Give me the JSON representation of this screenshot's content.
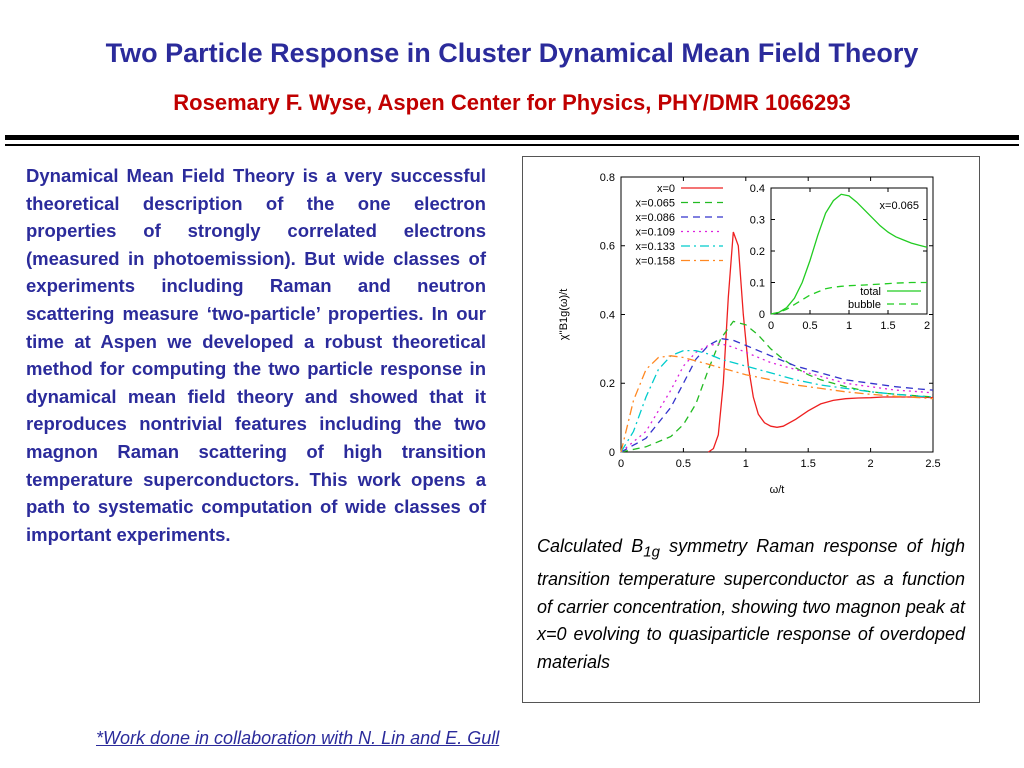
{
  "header": {
    "title": "Two Particle Response in Cluster Dynamical Mean Field Theory",
    "subtitle": "Rosemary F. Wyse, Aspen Center for Physics, PHY/DMR 1066293"
  },
  "body_text": "Dynamical Mean Field Theory is  a very successful theoretical description of the one electron properties of  strongly correlated electrons (measured in photoemission). But wide classes of experiments including Raman and neutron scattering measure ‘two-particle’ properties. In our time at Aspen we developed a robust theoretical method for computing the two particle response in dynamical mean field theory and showed that it reproduces nontrivial features including the two magnon Raman scattering of high transition temperature superconductors. This work opens a path to systematic computation of wide classes of important experiments.",
  "caption": {
    "pre": "Calculated B",
    "sub": "1g",
    "post": " symmetry Raman response of high transition temperature superconductor as a function of carrier concentration, showing two magnon peak at x=0 evolving to quasiparticle response of overdoped materials"
  },
  "footnote": "*Work done in collaboration with N. Lin and E. Gull",
  "chart_data": [
    {
      "type": "line",
      "xlabel": "ω/t",
      "ylabel": "χ''B1g(ω)/t",
      "xlim": [
        0,
        2.5
      ],
      "ylim": [
        0,
        0.8
      ],
      "xticks": [
        "0",
        "0.5",
        "1",
        "1.5",
        "2",
        "2.5"
      ],
      "yticks": [
        "0",
        "0.2",
        "0.4",
        "0.6",
        "0.8"
      ],
      "legend_position": "top-left",
      "series": [
        {
          "name": "x=0",
          "color": "#ee2020",
          "dash": "solid",
          "x": [
            0.7,
            0.74,
            0.78,
            0.82,
            0.86,
            0.9,
            0.94,
            0.98,
            1.02,
            1.06,
            1.1,
            1.15,
            1.2,
            1.25,
            1.3,
            1.4,
            1.5,
            1.6,
            1.7,
            1.8,
            1.9,
            2.0,
            2.1,
            2.2,
            2.3,
            2.4,
            2.5
          ],
          "y": [
            0.0,
            0.01,
            0.05,
            0.2,
            0.45,
            0.64,
            0.6,
            0.4,
            0.25,
            0.16,
            0.11,
            0.085,
            0.075,
            0.072,
            0.075,
            0.095,
            0.12,
            0.14,
            0.15,
            0.155,
            0.157,
            0.158,
            0.16,
            0.16,
            0.16,
            0.16,
            0.158
          ]
        },
        {
          "name": "x=0.065",
          "color": "#22bb22",
          "dash": "7,5",
          "x": [
            0.0,
            0.2,
            0.4,
            0.5,
            0.6,
            0.7,
            0.8,
            0.9,
            1.0,
            1.1,
            1.2,
            1.3,
            1.4,
            1.5,
            1.6,
            1.7,
            1.8,
            1.9,
            2.0,
            2.2,
            2.4,
            2.5
          ],
          "y": [
            0.0,
            0.015,
            0.045,
            0.08,
            0.14,
            0.24,
            0.33,
            0.38,
            0.37,
            0.34,
            0.3,
            0.27,
            0.245,
            0.225,
            0.21,
            0.2,
            0.19,
            0.182,
            0.175,
            0.168,
            0.163,
            0.16
          ]
        },
        {
          "name": "x=0.086",
          "color": "#3333cc",
          "dash": "7,5",
          "x": [
            0.0,
            0.2,
            0.4,
            0.5,
            0.6,
            0.7,
            0.8,
            0.9,
            1.0,
            1.2,
            1.4,
            1.6,
            1.8,
            2.0,
            2.2,
            2.4,
            2.5
          ],
          "y": [
            0.0,
            0.04,
            0.13,
            0.2,
            0.27,
            0.31,
            0.33,
            0.325,
            0.31,
            0.28,
            0.25,
            0.23,
            0.21,
            0.2,
            0.19,
            0.183,
            0.18
          ]
        },
        {
          "name": "x=0.109",
          "color": "#dd22dd",
          "dash": "2,4",
          "x": [
            0.0,
            0.2,
            0.4,
            0.5,
            0.6,
            0.7,
            0.8,
            0.9,
            1.0,
            1.2,
            1.4,
            1.6,
            1.8,
            2.0,
            2.2,
            2.4,
            2.5
          ],
          "y": [
            0.0,
            0.06,
            0.18,
            0.25,
            0.29,
            0.31,
            0.315,
            0.305,
            0.29,
            0.26,
            0.24,
            0.22,
            0.2,
            0.19,
            0.18,
            0.175,
            0.172
          ]
        },
        {
          "name": "x=0.133",
          "color": "#00cccc",
          "dash": "9,4,2,4",
          "x": [
            0.0,
            0.1,
            0.2,
            0.3,
            0.4,
            0.5,
            0.6,
            0.7,
            0.8,
            0.9,
            1.0,
            1.2,
            1.4,
            1.6,
            1.8,
            2.0,
            2.2,
            2.4,
            2.5
          ],
          "y": [
            0.0,
            0.06,
            0.16,
            0.24,
            0.28,
            0.295,
            0.295,
            0.285,
            0.27,
            0.26,
            0.25,
            0.23,
            0.21,
            0.195,
            0.185,
            0.175,
            0.168,
            0.162,
            0.16
          ]
        },
        {
          "name": "x=0.158",
          "color": "#ff8822",
          "dash": "9,4,2,4",
          "x": [
            0.0,
            0.1,
            0.2,
            0.3,
            0.4,
            0.5,
            0.6,
            0.7,
            0.8,
            0.9,
            1.0,
            1.2,
            1.4,
            1.6,
            1.8,
            2.0,
            2.2,
            2.4,
            2.5
          ],
          "y": [
            0.0,
            0.15,
            0.24,
            0.275,
            0.28,
            0.275,
            0.265,
            0.255,
            0.245,
            0.235,
            0.225,
            0.21,
            0.195,
            0.185,
            0.175,
            0.168,
            0.162,
            0.158,
            0.155
          ]
        }
      ]
    },
    {
      "type": "line",
      "annotation": "x=0.065",
      "xlim": [
        0,
        2
      ],
      "ylim": [
        0,
        0.4
      ],
      "xticks": [
        "0",
        "0.5",
        "1",
        "1.5",
        "2"
      ],
      "yticks": [
        "0",
        "0.1",
        "0.2",
        "0.3",
        "0.4"
      ],
      "legend_position": "bottom-right",
      "series": [
        {
          "name": "total",
          "color": "#22cc22",
          "dash": "solid",
          "x": [
            0.0,
            0.1,
            0.2,
            0.3,
            0.4,
            0.5,
            0.6,
            0.7,
            0.8,
            0.9,
            1.0,
            1.1,
            1.2,
            1.3,
            1.4,
            1.5,
            1.6,
            1.7,
            1.8,
            1.9,
            2.0
          ],
          "y": [
            0.0,
            0.005,
            0.02,
            0.05,
            0.1,
            0.17,
            0.25,
            0.32,
            0.36,
            0.38,
            0.375,
            0.355,
            0.33,
            0.305,
            0.28,
            0.26,
            0.245,
            0.235,
            0.225,
            0.218,
            0.212
          ]
        },
        {
          "name": "bubble",
          "color": "#22cc22",
          "dash": "7,5",
          "x": [
            0.0,
            0.1,
            0.2,
            0.3,
            0.4,
            0.5,
            0.6,
            0.7,
            0.8,
            0.9,
            1.0,
            1.2,
            1.4,
            1.6,
            1.8,
            2.0
          ],
          "y": [
            0.0,
            0.005,
            0.015,
            0.03,
            0.045,
            0.06,
            0.07,
            0.08,
            0.085,
            0.088,
            0.09,
            0.092,
            0.095,
            0.098,
            0.1,
            0.1
          ]
        }
      ]
    }
  ]
}
